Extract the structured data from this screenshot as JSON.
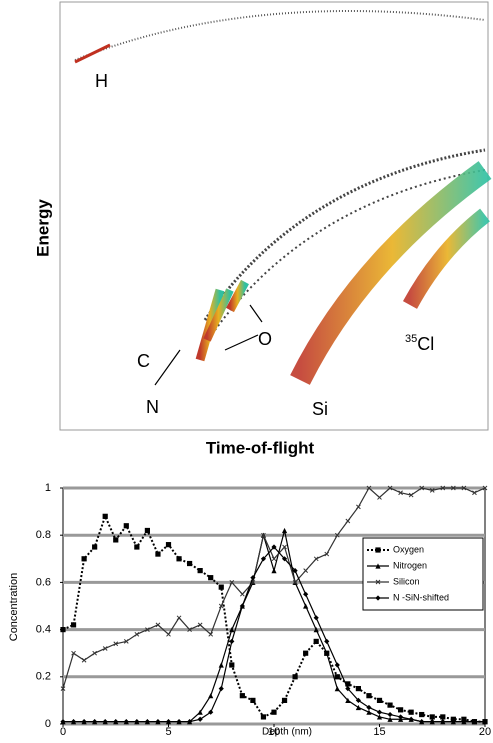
{
  "chart_data": [
    {
      "type": "image",
      "xlabel": "Time-of-flight",
      "ylabel": "Energy",
      "annotations": [
        "H",
        "C",
        "N",
        "O",
        "Si"
      ],
      "isotope": {
        "mass": "35",
        "symbol": "Cl"
      }
    },
    {
      "type": "line",
      "xlabel": "Depth (nm)",
      "ylabel": "Concentration",
      "xlim": [
        0,
        20
      ],
      "xticks": [
        0,
        5,
        10,
        15,
        20
      ],
      "ylim": [
        0,
        1
      ],
      "yticks": [
        0,
        0.2,
        0.4,
        0.6,
        0.8,
        1
      ],
      "grid": true,
      "legend": "right",
      "x": [
        0,
        0.5,
        1,
        1.5,
        2,
        2.5,
        3,
        3.5,
        4,
        4.5,
        5,
        5.5,
        6,
        6.5,
        7,
        7.5,
        8,
        8.5,
        9,
        9.5,
        10,
        10.5,
        11,
        11.5,
        12,
        12.5,
        13,
        13.5,
        14,
        14.5,
        15,
        15.5,
        16,
        16.5,
        17,
        17.5,
        18,
        18.5,
        19,
        19.5,
        20
      ],
      "series": [
        {
          "name": "Oxygen",
          "color": "#000000",
          "marker": "square",
          "dash": true,
          "values": [
            0.4,
            0.42,
            0.7,
            0.75,
            0.88,
            0.78,
            0.84,
            0.75,
            0.82,
            0.72,
            0.76,
            0.7,
            0.68,
            0.65,
            0.62,
            0.58,
            0.25,
            0.12,
            0.1,
            0.03,
            0.05,
            0.1,
            0.2,
            0.3,
            0.35,
            0.3,
            0.2,
            0.17,
            0.15,
            0.12,
            0.1,
            0.08,
            0.06,
            0.05,
            0.04,
            0.03,
            0.03,
            0.02,
            0.02,
            0.01,
            0.01
          ]
        },
        {
          "name": "Nitrogen",
          "color": "#000000",
          "marker": "triangle",
          "dash": false,
          "values": [
            0.01,
            0.01,
            0.01,
            0.01,
            0.01,
            0.01,
            0.01,
            0.01,
            0.01,
            0.01,
            0.01,
            0.01,
            0.01,
            0.05,
            0.12,
            0.25,
            0.4,
            0.5,
            0.6,
            0.8,
            0.65,
            0.82,
            0.6,
            0.5,
            0.4,
            0.3,
            0.15,
            0.1,
            0.07,
            0.05,
            0.03,
            0.02,
            0.02,
            0.02,
            0.01,
            0.01,
            0.01,
            0.01,
            0.01,
            0.01,
            0.01
          ]
        },
        {
          "name": "Silicon",
          "color": "#333333",
          "marker": "cross",
          "dash": false,
          "values": [
            0.15,
            0.3,
            0.27,
            0.3,
            0.32,
            0.34,
            0.35,
            0.38,
            0.4,
            0.42,
            0.38,
            0.45,
            0.4,
            0.42,
            0.38,
            0.5,
            0.6,
            0.55,
            0.6,
            0.8,
            0.7,
            0.75,
            0.6,
            0.65,
            0.7,
            0.72,
            0.8,
            0.86,
            0.92,
            1,
            0.96,
            1,
            0.98,
            0.97,
            1,
            0.99,
            1,
            1,
            1,
            0.98,
            1
          ]
        },
        {
          "name": "N -SiN-shifted",
          "color": "#000000",
          "marker": "diamond",
          "dash": false,
          "values": [
            0.01,
            0.01,
            0.01,
            0.01,
            0.01,
            0.01,
            0.01,
            0.01,
            0.01,
            0.01,
            0.01,
            0.01,
            0.01,
            0.02,
            0.05,
            0.15,
            0.35,
            0.5,
            0.62,
            0.7,
            0.75,
            0.7,
            0.65,
            0.55,
            0.45,
            0.35,
            0.25,
            0.15,
            0.1,
            0.07,
            0.05,
            0.04,
            0.03,
            0.02,
            0.01,
            0.01,
            0.01,
            0.01,
            0.01,
            0.01,
            0.01
          ]
        }
      ]
    }
  ]
}
